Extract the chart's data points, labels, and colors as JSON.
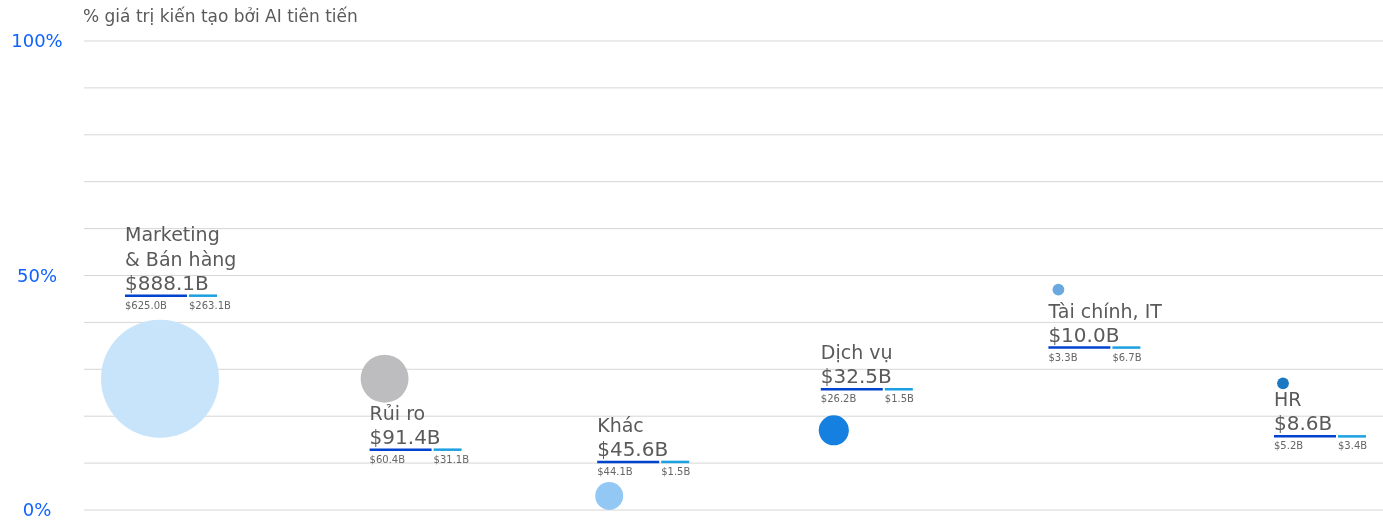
{
  "chart_data": {
    "type": "bubble",
    "ylabel": "% giá trị kiến tạo bởi AI tiên tiến",
    "categories": [
      null,
      null,
      null,
      null,
      null,
      null
    ],
    "ylim": [
      0,
      100
    ],
    "yticks": [
      {
        "value": 0,
        "label": "0%"
      },
      {
        "value": 10,
        "label": null
      },
      {
        "value": 20,
        "label": null
      },
      {
        "value": 30,
        "label": null
      },
      {
        "value": 40,
        "label": null
      },
      {
        "value": 50,
        "label": "50%"
      },
      {
        "value": 60,
        "label": null
      },
      {
        "value": 70,
        "label": null
      },
      {
        "value": 80,
        "label": null
      },
      {
        "value": 90,
        "label": null
      },
      {
        "value": 100,
        "label": "100%"
      }
    ],
    "grid": "y",
    "series": [
      {
        "name": "Marketing & Bán hàng",
        "color": "#c8e4fb",
        "values": [
          28,
          null,
          null,
          null,
          null,
          null
        ],
        "sizes": [
          1,
          null,
          null,
          null,
          null,
          null
        ]
      },
      {
        "name": "Rủi ro",
        "color": "#bdbdbf",
        "values": [
          null,
          28,
          null,
          null,
          null,
          null
        ],
        "sizes": [
          null,
          0.165,
          null,
          null,
          null,
          null
        ]
      },
      {
        "name": "Khác",
        "color": "#93c8f4",
        "values": [
          null,
          null,
          3,
          null,
          null,
          null
        ],
        "sizes": [
          null,
          null,
          0.056,
          null,
          null,
          null
        ]
      },
      {
        "name": "Dịch vụ",
        "color": "#1580e0",
        "values": [
          null,
          null,
          null,
          17,
          null,
          null
        ],
        "sizes": [
          null,
          null,
          null,
          0.065,
          null,
          null
        ]
      },
      {
        "name": "Tài chính, IT",
        "color": "#6aa9e0",
        "values": [
          null,
          null,
          null,
          null,
          47,
          null
        ],
        "sizes": [
          null,
          null,
          null,
          null,
          0.01,
          null
        ]
      },
      {
        "name": "HR",
        "color": "#1c78c0",
        "values": [
          null,
          null,
          null,
          null,
          null,
          27
        ],
        "sizes": [
          null,
          null,
          null,
          null,
          null,
          0.01
        ]
      }
    ],
    "annotations": [
      "$888.1B",
      "$625.0B",
      "$263.1B",
      "$91.4B",
      "$60.4B",
      "$31.1B",
      "$45.6B",
      "$44.1B",
      "$1.5B",
      "$32.5B",
      "$26.2B",
      "$1.5B",
      "$10.0B",
      "$3.3B",
      "$6.7B",
      "$8.6B",
      "$5.2B",
      "$3.4B"
    ]
  }
}
